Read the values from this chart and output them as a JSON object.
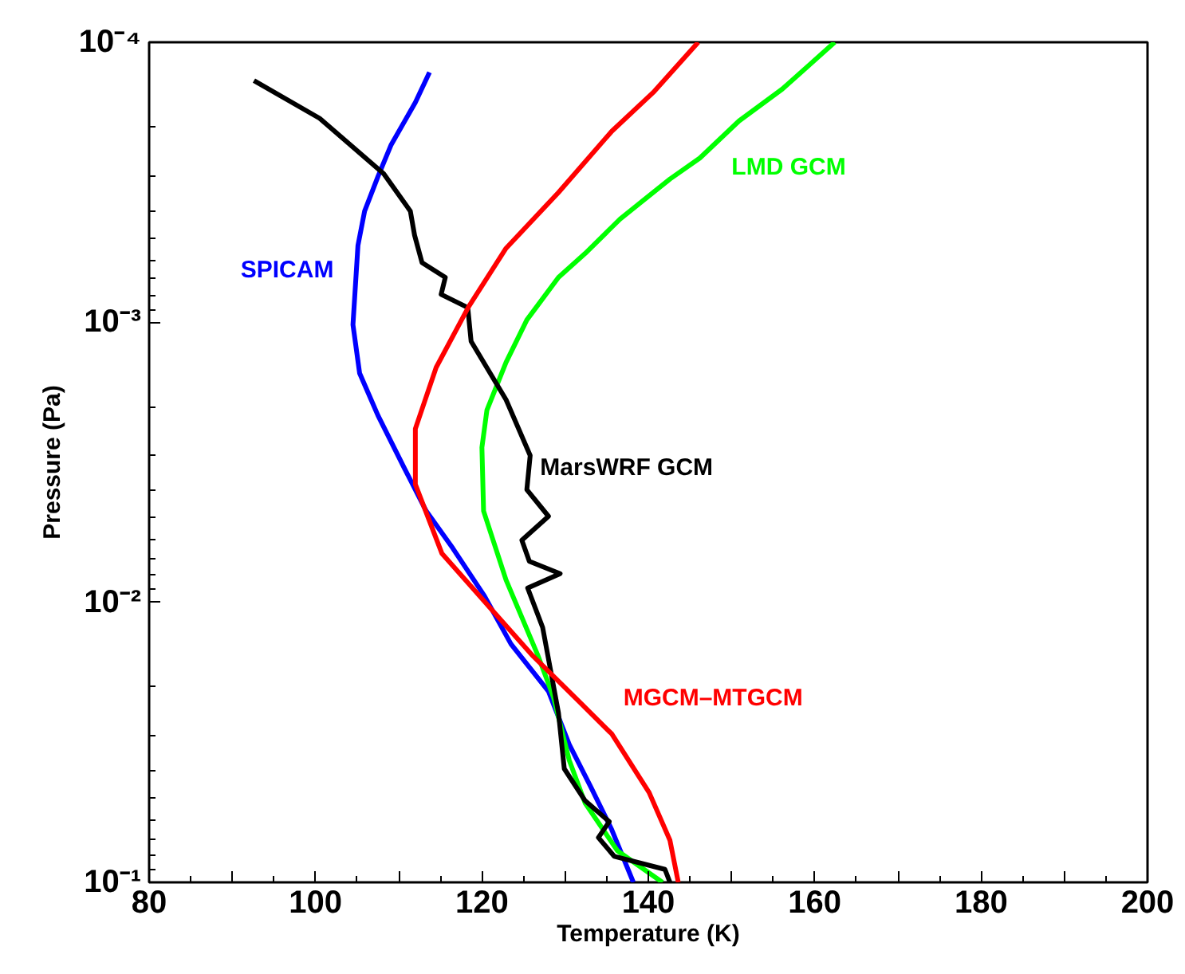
{
  "chart_data": {
    "type": "line",
    "xlabel": "Temperature (K)",
    "ylabel": "Pressure (Pa)",
    "log": "y",
    "grid": false,
    "marker": "none",
    "line_style": "solid",
    "xlim": [
      80,
      200
    ],
    "xticks": [
      80,
      {
        "value": 90,
        "label": null
      },
      100,
      {
        "value": 110,
        "label": null
      },
      120,
      {
        "value": 130,
        "label": null
      },
      140,
      {
        "value": 150,
        "label": null
      },
      160,
      {
        "value": 170,
        "label": null
      },
      180,
      {
        "value": 190,
        "label": null
      },
      200
    ],
    "ylim": [
      0.1,
      0.0001
    ],
    "yticks": [
      {
        "value": 0.1,
        "label": "10⁻¹"
      },
      {
        "value": 0.01,
        "label": "10⁻²"
      },
      {
        "value": 0.001,
        "label": "10⁻³"
      },
      {
        "value": 0.0001,
        "label": "10⁻⁴"
      }
    ],
    "series": [
      {
        "name": "SPICAM",
        "color": "#0000ff",
        "x": [
          113.7,
          112.0,
          109.1,
          107.5,
          105.9,
          105.1,
          104.5,
          105.3,
          107.5,
          110.7,
          113.3,
          116.5,
          120.3,
          123.5,
          128.0,
          130.5,
          133.1,
          135.6,
          138.2
        ],
        "values": [
          0.000128,
          0.000164,
          0.000232,
          0.000302,
          0.000401,
          0.000532,
          0.00102,
          0.00152,
          0.00215,
          0.00333,
          0.00472,
          0.00641,
          0.00949,
          0.0141,
          0.0208,
          0.0322,
          0.0457,
          0.0648,
          0.1
        ]
      },
      {
        "name": "LMD GCM",
        "color": "#00ff00",
        "x": [
          162.4,
          156.1,
          150.9,
          146.2,
          142.6,
          139.4,
          136.6,
          132.4,
          129.2,
          125.4,
          122.9,
          120.6,
          120.0,
          120.2,
          122.9,
          126.7,
          128.6,
          130.5,
          132.4,
          136.3,
          141.7
        ],
        "values": [
          0.0001,
          0.000147,
          0.000191,
          0.000259,
          0.000308,
          0.000367,
          0.000428,
          0.000568,
          0.000691,
          0.000981,
          0.00139,
          0.00206,
          0.0028,
          0.00472,
          0.00832,
          0.0154,
          0.0218,
          0.0367,
          0.0521,
          0.0772,
          0.1
        ]
      },
      {
        "name": "MarsWRF GCM",
        "color": "#000000",
        "x": [
          92.6,
          100.5,
          108.2,
          111.4,
          111.9,
          112.8,
          115.6,
          115.1,
          118.3,
          118.7,
          122.9,
          125.8,
          125.4,
          128.0,
          124.8,
          125.7,
          129.4,
          125.5,
          127.3,
          129.2,
          129.9,
          132.4,
          135.3,
          134.0,
          135.9,
          142.0,
          142.6
        ],
        "values": [
          0.000137,
          0.000187,
          0.000295,
          0.000401,
          0.000488,
          0.000612,
          0.000691,
          0.000795,
          0.000886,
          0.00117,
          0.00189,
          0.00299,
          0.00396,
          0.00493,
          0.006,
          0.00714,
          0.0079,
          0.00889,
          0.0123,
          0.0248,
          0.0393,
          0.0511,
          0.0607,
          0.0692,
          0.0807,
          0.0899,
          0.1
        ]
      },
      {
        "name": "MGCM–MTGCM",
        "color": "#ff0000",
        "x": [
          146.0,
          140.7,
          135.6,
          129.2,
          122.9,
          118.4,
          114.5,
          112.0,
          112.0,
          115.2,
          120.3,
          126.0,
          131.8,
          135.6,
          140.1,
          142.6,
          143.6
        ],
        "values": [
          0.0001,
          0.00015,
          0.000208,
          0.000344,
          0.000544,
          0.00088,
          0.00145,
          0.0024,
          0.00379,
          0.0067,
          0.00993,
          0.0154,
          0.0228,
          0.0295,
          0.0478,
          0.0708,
          0.1
        ]
      }
    ]
  }
}
